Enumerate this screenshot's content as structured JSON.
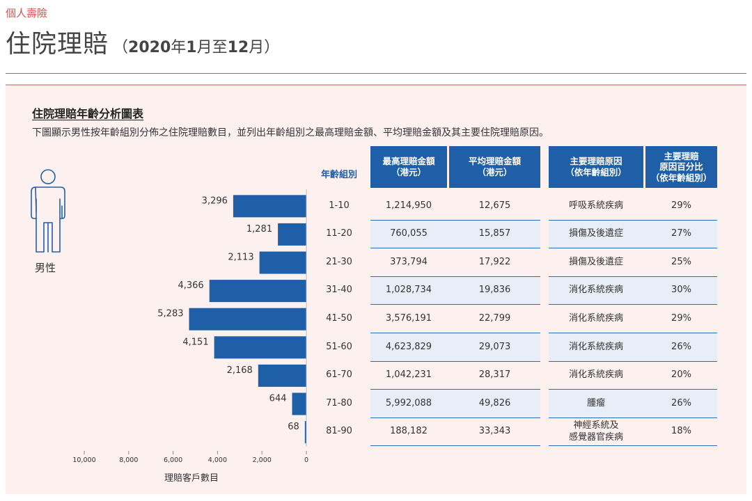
{
  "header": {
    "category": "個人壽險",
    "title": "住院理賠",
    "subtitle_open": "（",
    "subtitle_year": "2020",
    "subtitle_year_unit": "年",
    "subtitle_month_start": "1",
    "subtitle_month_unit1": "月至",
    "subtitle_month_end": "12",
    "subtitle_month_unit2": "月）"
  },
  "section": {
    "title": "住院理賠年齡分析圖表",
    "description": "下圖顯示男性按年齡組別分佈之住院理賠數目，並列出年齡組別之最高理賠金額、平均理賠金額及其主要住院理賠原因。",
    "gender_label": "男性",
    "gender_icon": "male-person-icon"
  },
  "table_headers": {
    "age_group": "年齡組別",
    "max_claim": "最高理賠金額\n（港元）",
    "avg_claim": "平均理賠金額\n（港元）",
    "main_reason": "主要理賠原因\n（依年齡組別）",
    "reason_pct": "主要理賠\n原因百分比\n（依年齡組別）"
  },
  "rows": [
    {
      "age": "1-10",
      "max": "1,214,950",
      "avg": "12,675",
      "reason": "呼吸系統疾病",
      "pct": "29%"
    },
    {
      "age": "11-20",
      "max": "760,055",
      "avg": "15,857",
      "reason": "損傷及後遺症",
      "pct": "27%"
    },
    {
      "age": "21-30",
      "max": "373,794",
      "avg": "17,922",
      "reason": "損傷及後遺症",
      "pct": "25%"
    },
    {
      "age": "31-40",
      "max": "1,028,734",
      "avg": "19,836",
      "reason": "消化系統疾病",
      "pct": "30%"
    },
    {
      "age": "41-50",
      "max": "3,576,191",
      "avg": "22,799",
      "reason": "消化系統疾病",
      "pct": "29%"
    },
    {
      "age": "51-60",
      "max": "4,623,829",
      "avg": "29,073",
      "reason": "消化系統疾病",
      "pct": "26%"
    },
    {
      "age": "61-70",
      "max": "1,042,231",
      "avg": "28,317",
      "reason": "消化系統疾病",
      "pct": "20%"
    },
    {
      "age": "71-80",
      "max": "5,992,088",
      "avg": "49,826",
      "reason": "腫瘤",
      "pct": "26%"
    },
    {
      "age": "81-90",
      "max": "188,182",
      "avg": "33,343",
      "reason": "神經系統及\n感覺器官疾病",
      "pct": "18%"
    }
  ],
  "colors": {
    "accent_red": "#d9534f",
    "bar_blue": "#1f5fa8",
    "panel_pink": "#fdf1f0",
    "stripe_blue": "#e8eef7"
  },
  "chart_data": {
    "type": "bar",
    "orientation": "horizontal",
    "direction": "right-to-left",
    "categories": [
      "1-10",
      "11-20",
      "21-30",
      "31-40",
      "41-50",
      "51-60",
      "61-70",
      "71-80",
      "81-90"
    ],
    "values": [
      3296,
      1281,
      2113,
      4366,
      5283,
      4151,
      2168,
      644,
      68
    ],
    "value_labels": [
      "3,296",
      "1,281",
      "2,113",
      "4,366",
      "5,283",
      "4,151",
      "2,168",
      "644",
      "68"
    ],
    "xlabel": "理賠客戶數目",
    "xlim": [
      0,
      10000
    ],
    "xticks": [
      10000,
      8000,
      6000,
      4000,
      2000,
      0
    ],
    "xtick_labels": [
      "10,000",
      "8,000",
      "6,000",
      "4,000",
      "2,000",
      "0"
    ],
    "grid": false
  }
}
